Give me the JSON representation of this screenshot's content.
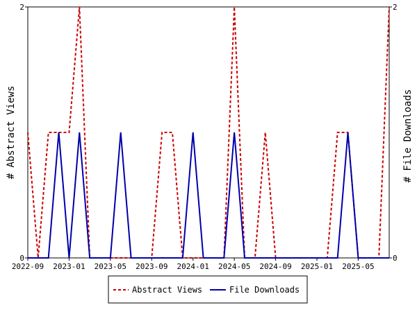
{
  "chart_data": {
    "type": "line",
    "x": [
      "2022-09",
      "2022-10",
      "2022-11",
      "2022-12",
      "2023-01",
      "2023-02",
      "2023-03",
      "2023-04",
      "2023-05",
      "2023-06",
      "2023-07",
      "2023-08",
      "2023-09",
      "2023-10",
      "2023-11",
      "2023-12",
      "2024-01",
      "2024-02",
      "2024-03",
      "2024-04",
      "2024-05",
      "2024-06",
      "2024-07",
      "2024-08",
      "2024-09",
      "2024-10",
      "2024-11",
      "2024-12",
      "2025-01",
      "2025-02",
      "2025-03",
      "2025-04",
      "2025-05",
      "2025-06",
      "2025-07",
      "2025-08"
    ],
    "x_ticks": [
      "2022-09",
      "2023-01",
      "2023-05",
      "2023-09",
      "2024-01",
      "2024-05",
      "2024-09",
      "2025-01",
      "2025-05"
    ],
    "series": [
      {
        "name": "Abstract Views",
        "axis": "left",
        "color": "#cc0000",
        "style": "dashed",
        "values": [
          1,
          0,
          1,
          1,
          1,
          2,
          0,
          0,
          0,
          0,
          0,
          0,
          0,
          1,
          1,
          0,
          0,
          0,
          0,
          0,
          2,
          0,
          0,
          1,
          0,
          0,
          0,
          0,
          0,
          0,
          1,
          1,
          0,
          0,
          0,
          2
        ]
      },
      {
        "name": "File Downloads",
        "axis": "right",
        "color": "#0000aa",
        "style": "solid",
        "values": [
          0,
          0,
          0,
          1,
          0,
          1,
          0,
          0,
          0,
          1,
          0,
          0,
          0,
          0,
          0,
          0,
          1,
          0,
          0,
          0,
          1,
          0,
          0,
          0,
          0,
          0,
          0,
          0,
          0,
          0,
          0,
          1,
          0,
          0,
          0,
          0
        ]
      }
    ],
    "ylabel_left": "# Abstract Views",
    "ylabel_right": "# File Downloads",
    "ylim_left": [
      0,
      2
    ],
    "ylim_right": [
      0,
      2
    ],
    "y_ticks_left": [
      "0",
      "2"
    ],
    "y_ticks_right": [
      "0",
      "2"
    ],
    "legend_position": "bottom",
    "grid": false
  }
}
